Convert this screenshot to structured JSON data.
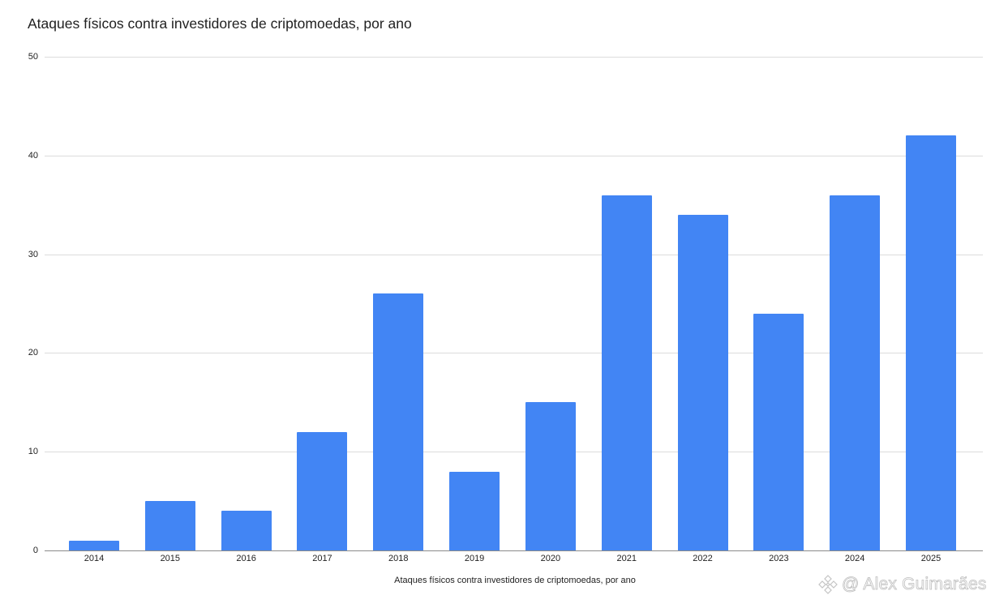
{
  "chart_data": {
    "type": "bar",
    "title": "Ataques físicos contra investidores de criptomoedas, por ano",
    "xlabel": "Ataques físicos contra investidores de criptomoedas, por ano",
    "ylabel": "",
    "categories": [
      "2014",
      "2015",
      "2016",
      "2017",
      "2018",
      "2019",
      "2020",
      "2021",
      "2022",
      "2023",
      "2024",
      "2025"
    ],
    "values": [
      1,
      5,
      4,
      12,
      26,
      8,
      15,
      36,
      34,
      24,
      36,
      42
    ],
    "ylim": [
      0,
      50
    ],
    "yticks": [
      0,
      10,
      20,
      30,
      40,
      50
    ],
    "grid": true,
    "legend": "none",
    "bar_color": "#4285f4"
  },
  "watermark": {
    "icon": "binance-logo-icon",
    "text": "@ Alex Guimarães"
  }
}
